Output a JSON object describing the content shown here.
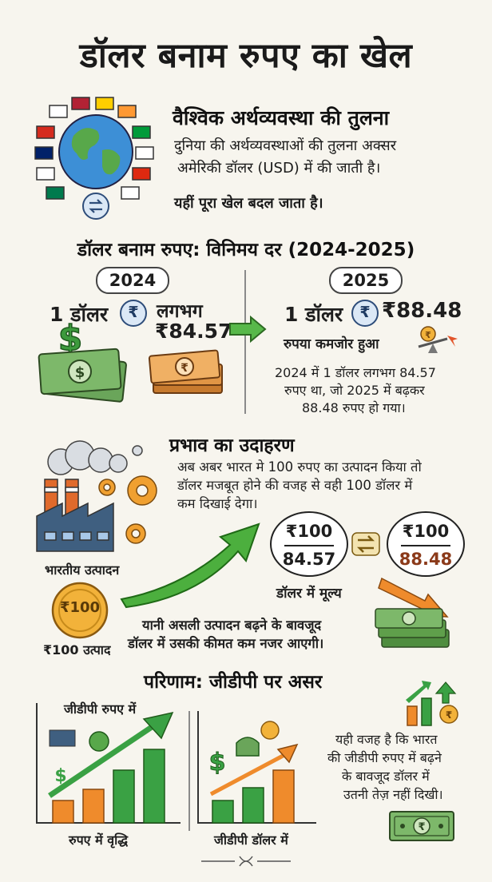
{
  "title": "डॉलर बनाम रुपए का खेल",
  "section1": {
    "heading": "वैश्विक अर्थव्यवस्था की तुलना",
    "line1": "दुनिया की अर्थव्यवस्थाओं की तुलना अक्सर",
    "line2": "अमेरिकी डॉलर (USD) में की जाती है।",
    "line3": "यहीं पूरा खेल बदल जाता है।"
  },
  "section2": {
    "heading": "डॉलर बनाम रुपए: विनिमय दर (2024-2025)",
    "year1": "2024",
    "year2": "2025",
    "left_one_dollar": "1 डॉलर",
    "rupee_symbol": "₹",
    "left_approx": "लगभग",
    "left_rate": "₹84.57",
    "right_one_dollar": "1 डॉलर",
    "right_rate": "₹88.48",
    "weakened": "रुपया कमजोर हुआ",
    "note1": "2024 में 1 डॉलर लगभग 84.57",
    "note2": "रुपए था, जो 2025 में बढ़कर",
    "note3": "88.48 रुपए हो गया।"
  },
  "section3": {
    "heading": "प्रभाव का उदाहरण",
    "line1": "अब अबर भारत मे 100 रुपए का उत्पादन किया तो",
    "line2": "डॉलर मजबूत होने की वजह से वही 100 डॉलर में",
    "line3": "कम दिखाई देगा।",
    "factory_label": "भारतीय उत्पादन",
    "coin_text": "₹100",
    "coin_label": "₹100 उत्पाद",
    "bubble1_num": "₹100",
    "bubble1_den": "84.57",
    "bubble2_num": "₹100",
    "bubble2_den": "88.48",
    "value_label": "डॉलर में मूल्य",
    "summary1": "यानी असली उत्पादन बढ़ने के बावजूद",
    "summary2": "डॉलर में उसकी कीमत कम नजर आएगी।"
  },
  "section4": {
    "heading": "परिणाम: जीडीपी पर असर",
    "chart1_title": "जीडीपी रुपए में",
    "chart1_caption": "रुपए में वृद्धि",
    "chart2_caption": "जीडीपी डॉलर में",
    "conclusion1": "यही वजह है कि भारत",
    "conclusion2": "की जीडीपी रुपए में बढ़ने",
    "conclusion3": "के बावजूद  डॉलर में",
    "conclusion4": "उतनी तेज़ नहीं दिखी।"
  },
  "colors": {
    "green": "#3aa144",
    "orange": "#ef8b2c",
    "money_green": "#5f9f4b",
    "blue": "#2e4d7a",
    "dark_red": "#8b3a1a"
  }
}
